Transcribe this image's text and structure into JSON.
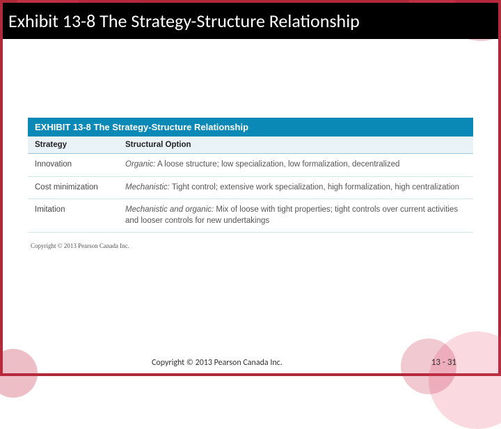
{
  "theme": {
    "accent": "#b02a3a",
    "header_bg": "#0a88b6",
    "row_divider": "#cde4ee",
    "th_border": "#9bc8d8",
    "th_bg": "#e9f2f6",
    "title_band_bg": "#000000",
    "title_color": "#ffffff",
    "body_text": "#555555"
  },
  "slide": {
    "title": "Exhibit 13-8 The Strategy-Structure Relationship"
  },
  "exhibit": {
    "header_label": "EXHIBIT 13-8  The Strategy-Structure Relationship",
    "columns": {
      "strategy": "Strategy",
      "option": "Structural Option"
    },
    "rows": [
      {
        "strategy": "Innovation",
        "option_emph": "Organic:",
        "option_rest": " A loose structure; low specialization, low formalization, decentralized"
      },
      {
        "strategy": "Cost minimization",
        "option_emph": "Mechanistic:",
        "option_rest": " Tight control; extensive work specialization, high formalization, high centralization"
      },
      {
        "strategy": "Imitation",
        "option_emph": "Mechanistic and organic:",
        "option_rest": " Mix of loose with tight properties; tight controls over current activities and looser controls for new undertakings"
      }
    ],
    "inner_copyright": "Copyright © 2013 Pearson Canada Inc."
  },
  "footer": {
    "copyright": "Copyright © 2013 Pearson Canada Inc.",
    "page": "13 - 31"
  }
}
